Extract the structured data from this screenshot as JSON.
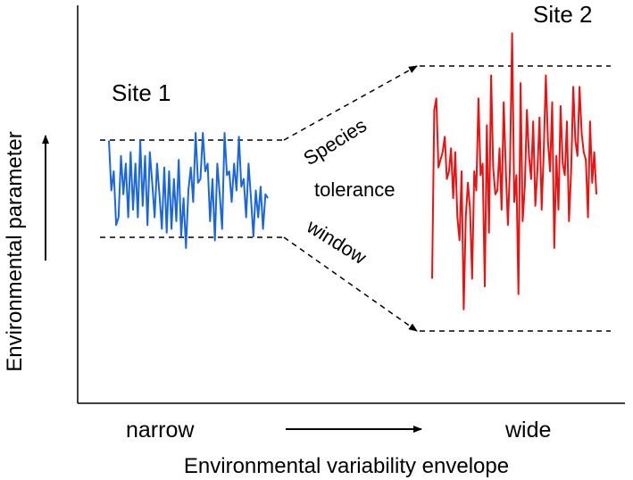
{
  "labels": {
    "site1": "Site 1",
    "site2": "Site 2",
    "species": "Species",
    "tolerance": "tolerance",
    "window": "window",
    "narrow": "narrow",
    "wide": "wide",
    "xlabel": "Environmental variability envelope",
    "ylabel": "Environmental parameter"
  },
  "colors": {
    "site1": "#1a66e0",
    "site2": "#ee1111",
    "axis": "#000000"
  },
  "series": {
    "site1": [
      68,
      55,
      60,
      46,
      48,
      64,
      54,
      62,
      48,
      65,
      50,
      62,
      48,
      68,
      51,
      64,
      46,
      65,
      57,
      48,
      62,
      54,
      45,
      61,
      44,
      60,
      45,
      58,
      47,
      63,
      43,
      53,
      40,
      55,
      61,
      52,
      70,
      57,
      58,
      70,
      60,
      62,
      47,
      58,
      42,
      62,
      54,
      45,
      70,
      59,
      60,
      52,
      62,
      55,
      69,
      56,
      58,
      48,
      62,
      53,
      43,
      55,
      48,
      56,
      45,
      54,
      53
    ],
    "site2": [
      32,
      76,
      79,
      61,
      63,
      65,
      69,
      58,
      60,
      66,
      53,
      65,
      48,
      42,
      60,
      24,
      48,
      57,
      50,
      32,
      60,
      55,
      79,
      59,
      62,
      30,
      72,
      44,
      85,
      61,
      54,
      55,
      66,
      50,
      78,
      60,
      46,
      62,
      96,
      52,
      59,
      28,
      83,
      47,
      56,
      76,
      64,
      58,
      73,
      51,
      60,
      74,
      50,
      65,
      85,
      68,
      60,
      78,
      40,
      64,
      50,
      77,
      62,
      59,
      73,
      47,
      60,
      82,
      68,
      64,
      82,
      70,
      65,
      63,
      48,
      73,
      57,
      65,
      54
    ]
  }
}
